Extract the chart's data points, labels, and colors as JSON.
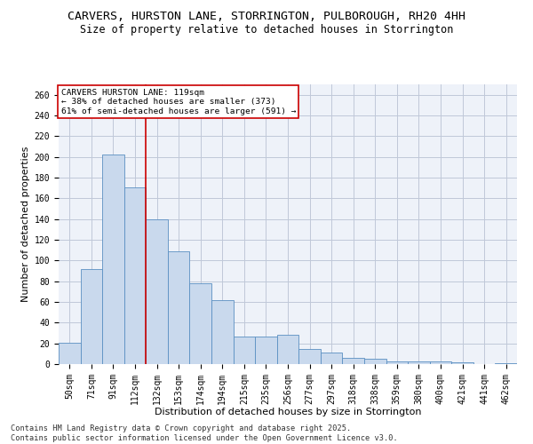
{
  "title_line1": "CARVERS, HURSTON LANE, STORRINGTON, PULBOROUGH, RH20 4HH",
  "title_line2": "Size of property relative to detached houses in Storrington",
  "xlabel": "Distribution of detached houses by size in Storrington",
  "ylabel": "Number of detached properties",
  "categories": [
    "50sqm",
    "71sqm",
    "91sqm",
    "112sqm",
    "132sqm",
    "153sqm",
    "174sqm",
    "194sqm",
    "215sqm",
    "235sqm",
    "256sqm",
    "277sqm",
    "297sqm",
    "318sqm",
    "338sqm",
    "359sqm",
    "380sqm",
    "400sqm",
    "421sqm",
    "441sqm",
    "462sqm"
  ],
  "values": [
    21,
    92,
    202,
    171,
    140,
    109,
    78,
    62,
    27,
    27,
    28,
    15,
    11,
    6,
    5,
    3,
    3,
    3,
    2,
    0,
    1
  ],
  "bar_color": "#c9d9ed",
  "bar_edge_color": "#5a8fc2",
  "grid_color": "#c0c8d8",
  "bg_color": "#eef2f9",
  "vline_x": 3.5,
  "vline_color": "#cc0000",
  "annotation_text": "CARVERS HURSTON LANE: 119sqm\n← 38% of detached houses are smaller (373)\n61% of semi-detached houses are larger (591) →",
  "annotation_box_color": "#cc0000",
  "ylim": [
    0,
    270
  ],
  "yticks": [
    0,
    20,
    40,
    60,
    80,
    100,
    120,
    140,
    160,
    180,
    200,
    220,
    240,
    260
  ],
  "footer_line1": "Contains HM Land Registry data © Crown copyright and database right 2025.",
  "footer_line2": "Contains public sector information licensed under the Open Government Licence v3.0.",
  "title_fontsize": 9.5,
  "subtitle_fontsize": 8.5,
  "annotation_fontsize": 6.8,
  "axis_label_fontsize": 8,
  "tick_fontsize": 7,
  "footer_fontsize": 6.2
}
